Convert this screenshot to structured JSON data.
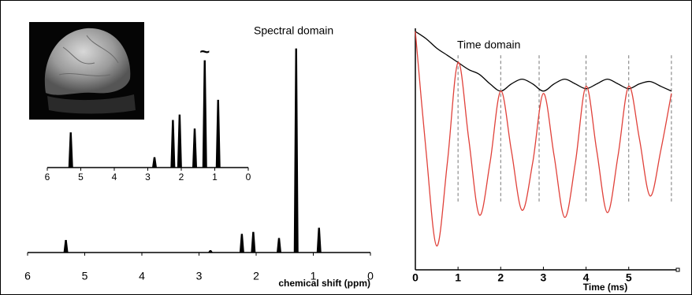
{
  "chart_data": [
    {
      "type": "spectrum",
      "title": "Spectral domain",
      "xlabel": "chemical shift (ppm)",
      "x": [
        5.33,
        2.8,
        2.25,
        2.05,
        1.6,
        1.3,
        0.9
      ],
      "values": [
        0.06,
        0.01,
        0.09,
        0.1,
        0.07,
        1.0,
        0.12
      ],
      "color": "#000000",
      "xlim": [
        6,
        0
      ],
      "ylim": [
        0,
        1
      ],
      "xticks": [
        6,
        5,
        4,
        3,
        2,
        1,
        0
      ]
    },
    {
      "type": "spectrum",
      "annotation": "~",
      "x": [
        5.3,
        2.8,
        2.25,
        2.05,
        1.6,
        1.3,
        0.9
      ],
      "values": [
        45,
        13,
        61,
        68,
        50,
        138,
        87
      ],
      "color": "#000000",
      "xlim": [
        6,
        0
      ],
      "ylim": [
        0,
        140
      ],
      "xticks": [
        6,
        5,
        4,
        3,
        2,
        1,
        0
      ]
    },
    {
      "type": "line",
      "title": "Time domain",
      "xlabel": "Time (ms)",
      "x": [
        0,
        0.25,
        0.5,
        0.75,
        1,
        1.25,
        1.5,
        1.75,
        2,
        2.25,
        2.5,
        2.75,
        3,
        3.25,
        3.5,
        3.75,
        4,
        4.25,
        4.5,
        4.75,
        5,
        5.25,
        5.5,
        5.75,
        6
      ],
      "series": [
        {
          "color": "#000000",
          "values": [
            1.0,
            0.97,
            0.93,
            0.9,
            0.87,
            0.84,
            0.82,
            0.78,
            0.75,
            0.78,
            0.8,
            0.78,
            0.75,
            0.78,
            0.8,
            0.78,
            0.76,
            0.78,
            0.8,
            0.78,
            0.76,
            0.78,
            0.79,
            0.77,
            0.75
          ]
        },
        {
          "color": "#e0413a",
          "values": [
            1.0,
            0.5,
            0.1,
            0.45,
            0.87,
            0.55,
            0.23,
            0.45,
            0.75,
            0.5,
            0.25,
            0.45,
            0.74,
            0.48,
            0.22,
            0.45,
            0.77,
            0.5,
            0.24,
            0.48,
            0.77,
            0.55,
            0.31,
            0.5,
            0.74
          ]
        }
      ],
      "reference_lines": [
        1,
        2,
        2.9,
        4,
        5,
        6
      ],
      "xlim": [
        0,
        6.15
      ],
      "ylim": [
        0,
        1
      ],
      "xticks": [
        0,
        1,
        2,
        3,
        4,
        5
      ]
    }
  ]
}
